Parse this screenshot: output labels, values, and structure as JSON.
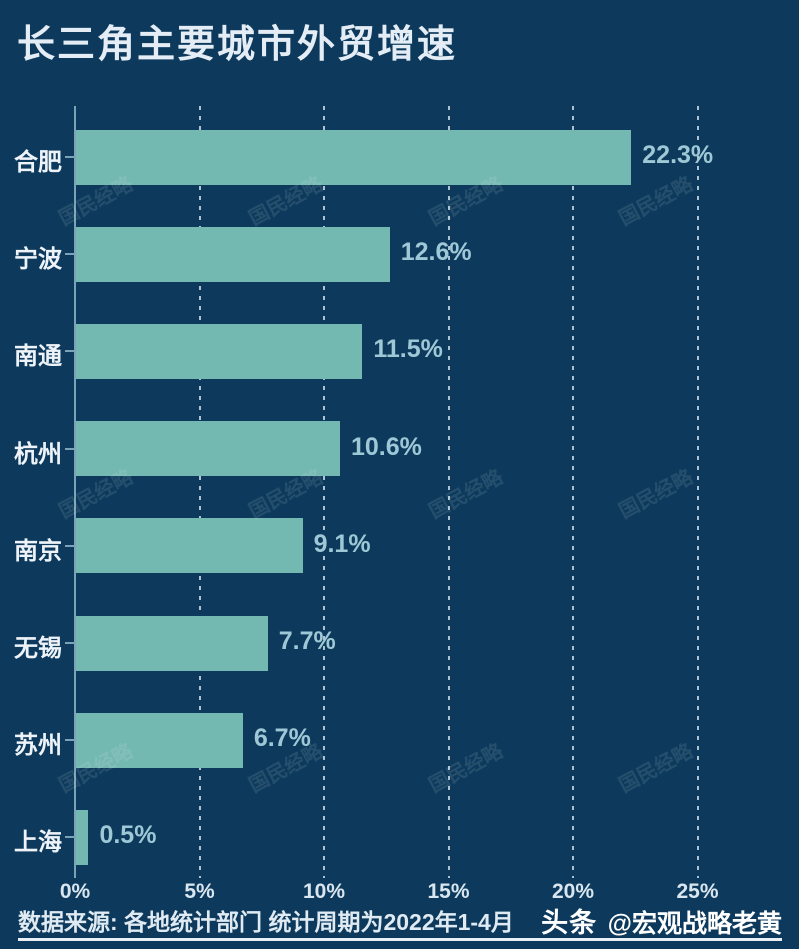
{
  "page": {
    "title": "长三角主要城市外贸增速",
    "watermark": "国民经略",
    "footer": {
      "source": "数据来源: 各地统计部门  统计周期为2022年1-4月",
      "credit_logo": "头条",
      "credit_handle": "@宏观战略老黄"
    }
  },
  "chart_data": {
    "type": "bar",
    "orientation": "horizontal",
    "title": "长三角主要城市外贸增速",
    "categories": [
      "合肥",
      "宁波",
      "南通",
      "杭州",
      "南京",
      "无锡",
      "苏州",
      "上海"
    ],
    "values": [
      22.3,
      12.6,
      11.5,
      10.6,
      9.1,
      7.7,
      6.7,
      0.5
    ],
    "value_labels": [
      "22.3%",
      "12.6%",
      "11.5%",
      "10.6%",
      "9.1%",
      "7.7%",
      "6.7%",
      "0.5%"
    ],
    "x_ticks": [
      "0%",
      "5%",
      "10%",
      "15%",
      "20%",
      "25%"
    ],
    "x_tick_values": [
      0,
      5,
      10,
      15,
      20,
      25
    ],
    "xlim": [
      0,
      29
    ],
    "xlabel": "",
    "ylabel": "",
    "grid": "vertical-dashed",
    "legend": "none",
    "colors": {
      "background": "#0d3a5c",
      "bar": "#74b8b2",
      "value_label": "#9fc8d6",
      "category_label": "#edf3f8",
      "axis_line": "#7ba3b8",
      "gridline": "#c9dbe6",
      "tick_label": "#d9e6ef"
    }
  }
}
